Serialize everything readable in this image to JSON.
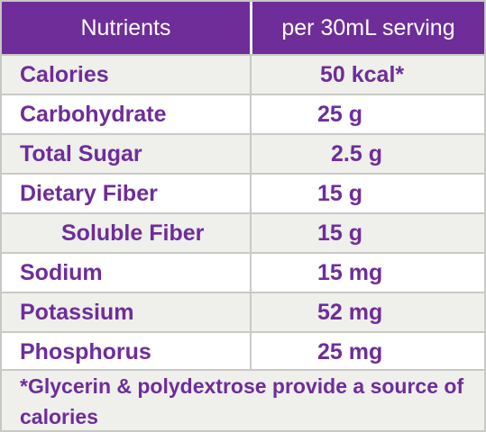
{
  "header": {
    "col_nutrients": "Nutrients",
    "col_serving": "per 30mL serving"
  },
  "rows": [
    {
      "label": "Calories",
      "value": "50 kcal*"
    },
    {
      "label": "Carbohydrate",
      "value": "25 g"
    },
    {
      "label": "Total Sugar",
      "value": "2.5 g"
    },
    {
      "label": "Dietary Fiber",
      "value": "15 g"
    },
    {
      "label": "Soluble Fiber",
      "value": "15 g"
    },
    {
      "label": "Sodium",
      "value": "15 mg"
    },
    {
      "label": "Potassium",
      "value": "52 mg"
    },
    {
      "label": "Phosphorus",
      "value": "25 mg"
    }
  ],
  "footnote": "*Glycerin & polydextrose provide a source of calories",
  "colors": {
    "header_bg": "#6e2d99",
    "text_purple": "#6e2d99",
    "row_shaded": "#efefec",
    "row_white": "#ffffff"
  }
}
